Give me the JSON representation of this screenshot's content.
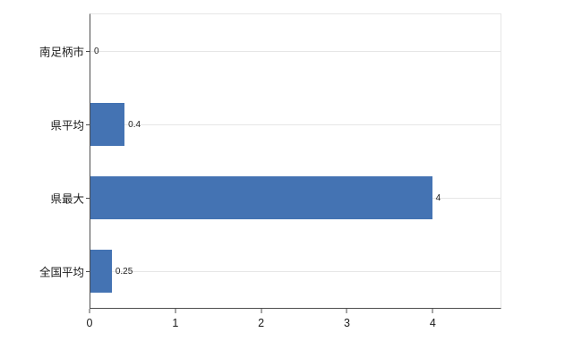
{
  "chart_data": {
    "type": "bar",
    "orientation": "horizontal",
    "title": "",
    "xlabel": "",
    "ylabel": "",
    "categories": [
      "南足柄市",
      "県平均",
      "県最大",
      "全国平均"
    ],
    "values": [
      0,
      0.4,
      4,
      0.25
    ],
    "value_labels": [
      "0",
      "0.4",
      "4",
      "0.25"
    ],
    "x_ticks": [
      0,
      1,
      2,
      3,
      4
    ],
    "xlim": [
      0,
      4.8
    ],
    "bar_color": "#4473b3",
    "grid": "horizontal light gridlines at each category",
    "legend": "none",
    "background_color": "#ffffff"
  }
}
